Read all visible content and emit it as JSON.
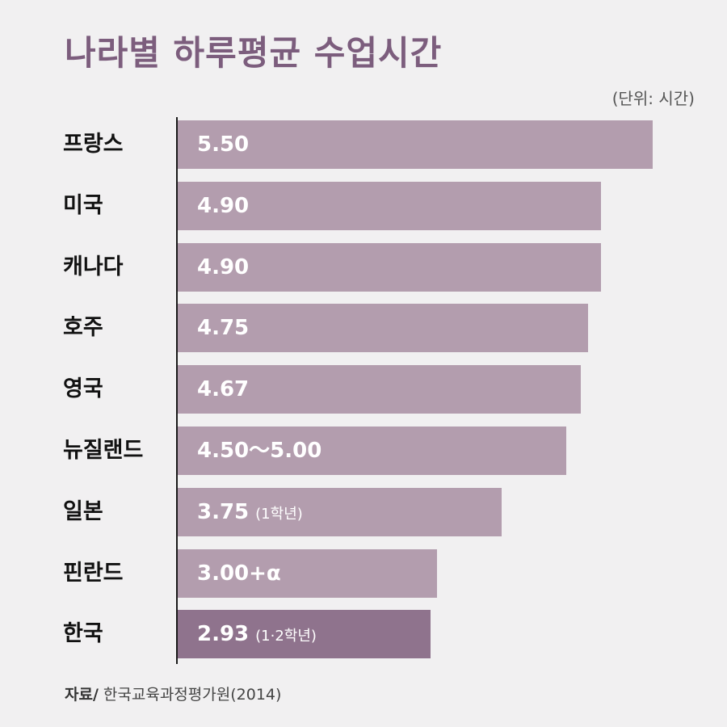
{
  "title": "나라별 하루평균 수업시간",
  "unit_label": "(단위: 시간)",
  "source": {
    "label": "자료/",
    "text": "한국교육과정평가원(2014)"
  },
  "colors": {
    "title": "#7c5d7d",
    "bar": "#b39dae",
    "bar_highlight": "#8f738d",
    "background": "#f1f0f1"
  },
  "chart_data": {
    "type": "bar",
    "orientation": "horizontal",
    "title": "나라별 하루평균 수업시간",
    "unit": "(단위: 시간)",
    "xlim": [
      0,
      5.5
    ],
    "grid": false,
    "highlight_index": 8,
    "categories": [
      "프랑스",
      "미국",
      "캐나다",
      "호주",
      "영국",
      "뉴질랜드",
      "일본",
      "핀란드",
      "한국"
    ],
    "values": [
      5.5,
      4.9,
      4.9,
      4.75,
      4.67,
      4.5,
      3.75,
      3.0,
      2.93
    ],
    "value_labels": [
      "5.50",
      "4.90",
      "4.90",
      "4.75",
      "4.67",
      "4.50〜5.00",
      "3.75",
      "3.00+α",
      "2.93"
    ],
    "value_notes": [
      "",
      "",
      "",
      "",
      "",
      "",
      "(1학년)",
      "",
      "(1·2학년)"
    ]
  }
}
